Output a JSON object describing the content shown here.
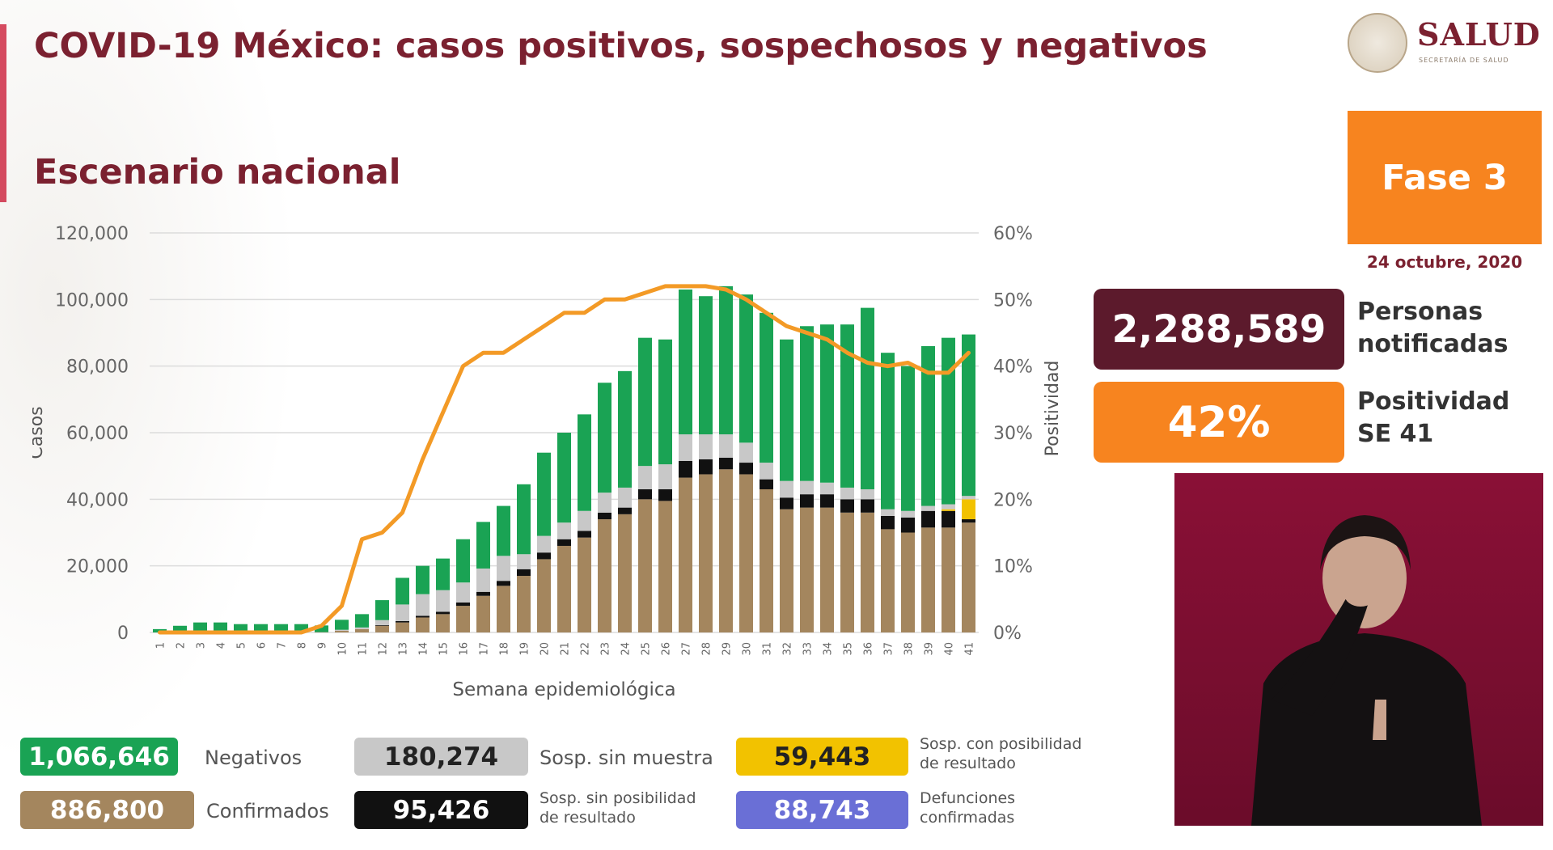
{
  "header": {
    "title": "COVID-19 México: casos positivos, sospechosos y negativos",
    "subtitle": "Escenario nacional"
  },
  "logo": {
    "text": "SALUD",
    "subtext": "SECRETARÍA DE SALUD"
  },
  "phase": {
    "label": "Fase 3",
    "date": "24 octubre, 2020",
    "color": "#f7841f"
  },
  "kpis": {
    "persons": {
      "value": "2,288,589",
      "label_line1": "Personas",
      "label_line2": "notificadas"
    },
    "positivity": {
      "value": "42%",
      "label_line1": "Positividad",
      "label_line2": "SE 41"
    }
  },
  "legend": [
    {
      "id": "negativos",
      "value": "1,066,646",
      "label": "Negativos",
      "label2": "",
      "color": "#1aa354"
    },
    {
      "id": "sosp_sin_muestra",
      "value": "180,274",
      "label": "Sosp. sin muestra",
      "label2": "",
      "color": "#c8c8c8"
    },
    {
      "id": "sosp_con_posibilidad",
      "value": "59,443",
      "label": "Sosp. con posibilidad",
      "label2": "de resultado",
      "color": "#f2c200"
    },
    {
      "id": "confirmados",
      "value": "886,800",
      "label": "Confirmados",
      "label2": "",
      "color": "#a4865e"
    },
    {
      "id": "sosp_sin_posibilidad",
      "value": "95,426",
      "label": "Sosp. sin posibilidad",
      "label2": "de resultado",
      "color": "#111111"
    },
    {
      "id": "defunciones",
      "value": "88,743",
      "label": "Defunciones",
      "label2": "confirmadas",
      "color": "#6a6fd6"
    }
  ],
  "chart_data": {
    "type": "bar",
    "stacked": true,
    "xlabel": "Semana epidemiológica",
    "ylabel": "Casos",
    "y2label": "Positividad",
    "ylim": [
      0,
      120000
    ],
    "y2lim": [
      0,
      60
    ],
    "yticks": [
      "0",
      "20,000",
      "40,000",
      "60,000",
      "80,000",
      "100,000",
      "120,000"
    ],
    "y2ticks": [
      "0%",
      "10%",
      "20%",
      "30%",
      "40%",
      "50%",
      "60%"
    ],
    "categories": [
      "1",
      "2",
      "3",
      "4",
      "5",
      "6",
      "7",
      "8",
      "9",
      "10",
      "11",
      "12",
      "13",
      "14",
      "15",
      "16",
      "17",
      "18",
      "19",
      "20",
      "21",
      "22",
      "23",
      "24",
      "25",
      "26",
      "27",
      "28",
      "29",
      "30",
      "31",
      "32",
      "33",
      "34",
      "35",
      "36",
      "37",
      "38",
      "39",
      "40",
      "41"
    ],
    "series": [
      {
        "name": "Confirmados",
        "color": "#a4865e",
        "values": [
          0,
          0,
          0,
          0,
          0,
          0,
          0,
          0,
          100,
          500,
          1000,
          2000,
          3000,
          4500,
          5500,
          8000,
          11000,
          14000,
          17000,
          22000,
          26000,
          28500,
          34000,
          35500,
          40000,
          39500,
          46500,
          47500,
          49000,
          47500,
          43000,
          37000,
          37500,
          37500,
          36000,
          36000,
          31000,
          30000,
          31500,
          31500,
          33000
        ]
      },
      {
        "name": "Sosp. sin posibilidad de resultado",
        "color": "#111111",
        "values": [
          0,
          0,
          0,
          0,
          0,
          0,
          0,
          0,
          0,
          0,
          0,
          200,
          400,
          500,
          700,
          1000,
          1200,
          1500,
          2000,
          2000,
          2000,
          2000,
          2000,
          2000,
          3000,
          3500,
          5000,
          4500,
          3500,
          3500,
          3000,
          3500,
          4000,
          4000,
          4000,
          4000,
          4000,
          4500,
          5000,
          5000,
          1000
        ]
      },
      {
        "name": "Sosp. con posibilidad de resultado",
        "color": "#f2c200",
        "values": [
          0,
          0,
          0,
          0,
          0,
          0,
          0,
          0,
          0,
          0,
          0,
          0,
          0,
          0,
          0,
          0,
          0,
          0,
          0,
          0,
          0,
          0,
          0,
          0,
          0,
          0,
          0,
          0,
          0,
          0,
          0,
          0,
          0,
          0,
          0,
          0,
          0,
          0,
          0,
          500,
          6000
        ]
      },
      {
        "name": "Sosp. sin muestra",
        "color": "#c8c8c8",
        "values": [
          0,
          0,
          0,
          0,
          0,
          0,
          0,
          0,
          0,
          300,
          500,
          1500,
          5000,
          6500,
          6500,
          6000,
          7000,
          7500,
          4500,
          5000,
          5000,
          6000,
          6000,
          6000,
          7000,
          7500,
          8000,
          7500,
          7000,
          6000,
          5000,
          5000,
          4000,
          3500,
          3500,
          3000,
          2000,
          2000,
          1500,
          1500,
          1000
        ]
      },
      {
        "name": "Negativos",
        "color": "#1aa354",
        "values": [
          1000,
          2000,
          3000,
          3000,
          2500,
          2500,
          2500,
          2500,
          2000,
          3000,
          4000,
          6000,
          8000,
          8500,
          9500,
          13000,
          14000,
          15000,
          21000,
          25000,
          27000,
          29000,
          33000,
          35000,
          38500,
          37500,
          43500,
          41500,
          44500,
          44500,
          45000,
          42500,
          46500,
          47500,
          49000,
          54500,
          47000,
          43500,
          48000,
          50000,
          48500
        ]
      }
    ],
    "line": {
      "name": "Positividad",
      "color": "#f39a26",
      "values": [
        0,
        0,
        0,
        0,
        0,
        0,
        0,
        0,
        1,
        4,
        14,
        15,
        18,
        26,
        33,
        40,
        42,
        42,
        44,
        46,
        48,
        48,
        50,
        50,
        51,
        52,
        52,
        52,
        51.5,
        50,
        48,
        46,
        45,
        44,
        42,
        40.5,
        40,
        40.5,
        39,
        39,
        42
      ]
    }
  }
}
